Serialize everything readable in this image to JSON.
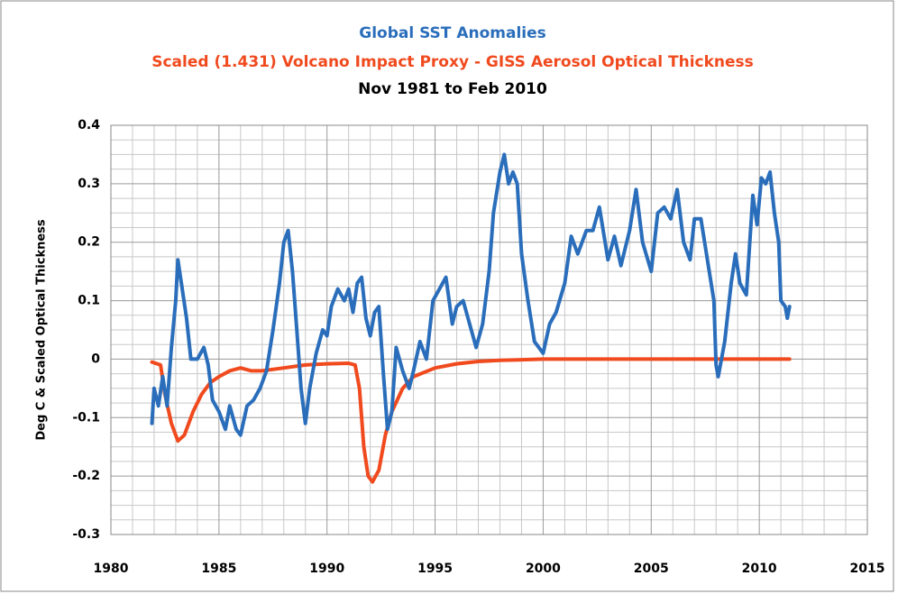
{
  "chart_data": {
    "type": "line",
    "title": "Global SST Anomalies",
    "subtitle": "Scaled (1.431) Volcano Impact Proxy - GISS Aerosol Optical Thickness",
    "period": "Nov 1981 to Feb 2010",
    "ylabel": "Deg C & Scaled  Optical Thickness",
    "xlim": [
      1980,
      2015
    ],
    "xticks": [
      1980,
      1985,
      1990,
      1995,
      2000,
      2005,
      2010,
      2015
    ],
    "ylim": [
      -0.3,
      0.4
    ],
    "yticks": [
      0.4,
      0.3,
      0.2,
      0.1,
      0,
      -0.1,
      -0.2,
      -0.3
    ],
    "grid": true,
    "series": [
      {
        "color": "#2a6ebb",
        "x": [
          1981.9,
          1982.0,
          1982.2,
          1982.4,
          1982.6,
          1982.8,
          1983.0,
          1983.1,
          1983.3,
          1983.5,
          1983.7,
          1984.0,
          1984.3,
          1984.5,
          1984.7,
          1985.0,
          1985.3,
          1985.5,
          1985.8,
          1986.0,
          1986.3,
          1986.6,
          1986.9,
          1987.2,
          1987.5,
          1987.8,
          1988.0,
          1988.2,
          1988.4,
          1988.6,
          1988.8,
          1989.0,
          1989.2,
          1989.5,
          1989.8,
          1990.0,
          1990.2,
          1990.5,
          1990.8,
          1991.0,
          1991.2,
          1991.4,
          1991.6,
          1991.8,
          1992.0,
          1992.2,
          1992.4,
          1992.6,
          1992.8,
          1993.0,
          1993.2,
          1993.5,
          1993.8,
          1994.0,
          1994.3,
          1994.6,
          1994.9,
          1995.2,
          1995.5,
          1995.8,
          1996.0,
          1996.3,
          1996.6,
          1996.9,
          1997.2,
          1997.5,
          1997.7,
          1998.0,
          1998.2,
          1998.4,
          1998.6,
          1998.8,
          1999.0,
          1999.3,
          1999.6,
          2000.0,
          2000.3,
          2000.6,
          2001.0,
          2001.3,
          2001.6,
          2002.0,
          2002.3,
          2002.6,
          2003.0,
          2003.3,
          2003.6,
          2004.0,
          2004.3,
          2004.6,
          2005.0,
          2005.3,
          2005.6,
          2005.9,
          2006.2,
          2006.5,
          2006.8,
          2007.0,
          2007.3,
          2007.6,
          2007.9,
          2008.0,
          2008.1,
          2008.4,
          2008.7,
          2008.9,
          2009.1,
          2009.4,
          2009.7,
          2009.9,
          2010.1,
          2010.3,
          2010.5,
          2010.7,
          2010.9,
          2011.0,
          2011.2,
          2011.3,
          2011.4
        ],
        "values": [
          -0.11,
          -0.05,
          -0.08,
          -0.03,
          -0.08,
          0.02,
          0.1,
          0.17,
          0.12,
          0.07,
          0.0,
          0.0,
          0.02,
          -0.01,
          -0.07,
          -0.09,
          -0.12,
          -0.08,
          -0.12,
          -0.13,
          -0.08,
          -0.07,
          -0.05,
          -0.02,
          0.05,
          0.13,
          0.2,
          0.22,
          0.15,
          0.05,
          -0.05,
          -0.11,
          -0.05,
          0.01,
          0.05,
          0.04,
          0.09,
          0.12,
          0.1,
          0.12,
          0.08,
          0.13,
          0.14,
          0.07,
          0.04,
          0.08,
          0.09,
          -0.02,
          -0.12,
          -0.09,
          0.02,
          -0.02,
          -0.05,
          -0.02,
          0.03,
          0.0,
          0.1,
          0.12,
          0.14,
          0.06,
          0.09,
          0.1,
          0.06,
          0.02,
          0.06,
          0.15,
          0.25,
          0.32,
          0.35,
          0.3,
          0.32,
          0.3,
          0.18,
          0.1,
          0.03,
          0.01,
          0.06,
          0.08,
          0.13,
          0.21,
          0.18,
          0.22,
          0.22,
          0.26,
          0.17,
          0.21,
          0.16,
          0.22,
          0.29,
          0.2,
          0.15,
          0.25,
          0.26,
          0.24,
          0.29,
          0.2,
          0.17,
          0.24,
          0.24,
          0.17,
          0.1,
          -0.01,
          -0.03,
          0.03,
          0.13,
          0.18,
          0.13,
          0.11,
          0.28,
          0.23,
          0.31,
          0.3,
          0.32,
          0.25,
          0.2,
          0.1,
          0.09,
          0.07,
          0.09
        ]
      },
      {
        "color": "#f04a1e",
        "x": [
          1981.9,
          1982.3,
          1982.5,
          1982.8,
          1983.1,
          1983.4,
          1983.8,
          1984.2,
          1984.6,
          1985.0,
          1985.5,
          1986.0,
          1986.5,
          1987.0,
          1988.0,
          1989.0,
          1990.0,
          1991.0,
          1991.3,
          1991.5,
          1991.7,
          1991.9,
          1992.1,
          1992.4,
          1992.7,
          1993.0,
          1993.5,
          1994.0,
          1995.0,
          1996.0,
          1997.0,
          1998.0,
          1999.0,
          2000.0,
          2011.4
        ],
        "values": [
          -0.005,
          -0.01,
          -0.06,
          -0.11,
          -0.14,
          -0.13,
          -0.09,
          -0.06,
          -0.04,
          -0.03,
          -0.02,
          -0.015,
          -0.02,
          -0.02,
          -0.015,
          -0.01,
          -0.008,
          -0.007,
          -0.01,
          -0.05,
          -0.15,
          -0.2,
          -0.21,
          -0.19,
          -0.13,
          -0.09,
          -0.05,
          -0.03,
          -0.015,
          -0.008,
          -0.004,
          -0.002,
          -0.001,
          0,
          0
        ]
      }
    ]
  }
}
